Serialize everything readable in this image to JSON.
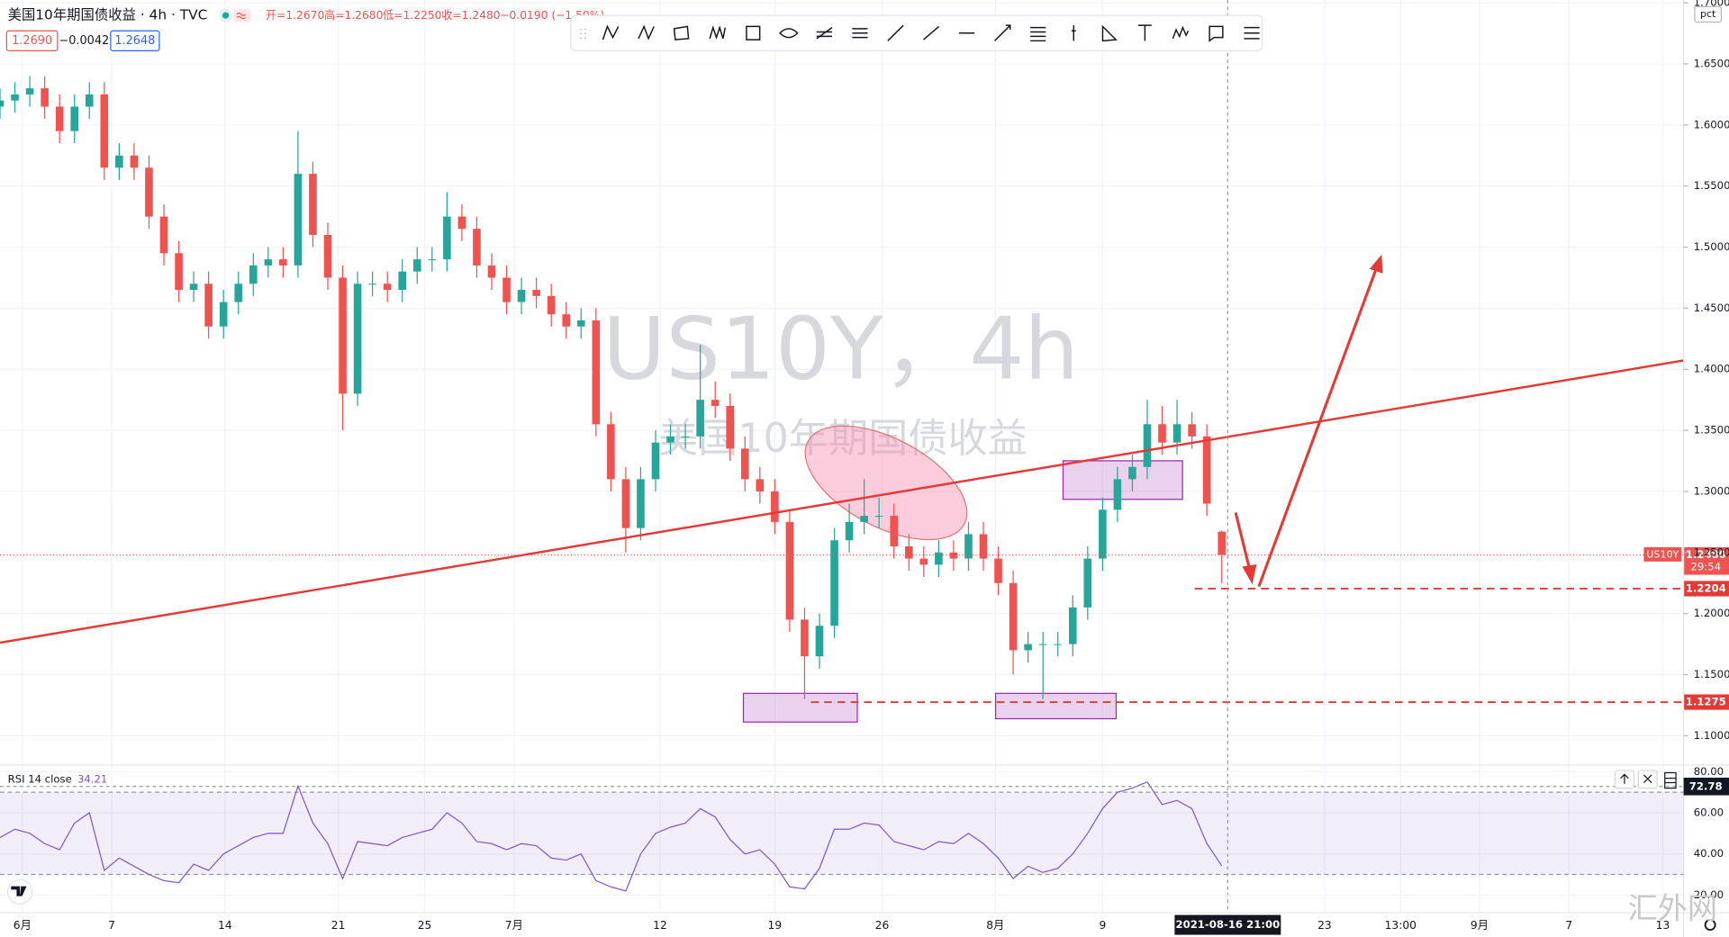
{
  "header": {
    "title": "美国10年期国债收益 · 4h · TVC",
    "ohlc": [
      "开=1.2670",
      "高=1.2680",
      "低=1.2250",
      "收=1.2480",
      "−0.0190 (−1.50%)"
    ],
    "bid": "1.2690",
    "spread": "−0.0042",
    "ask": "1.2648"
  },
  "watermark": {
    "symbol": "US10Y，4h",
    "name": "美国10年期国债收益"
  },
  "site_mark": "汇外网",
  "chart_data": [
    {
      "type": "candlestick",
      "series": [
        {
          "name": "US10Y",
          "up_color": "#26a69a",
          "down_color": "#ef5350",
          "open": [
            1.615,
            1.62,
            1.625,
            1.63,
            1.615,
            1.595,
            1.615,
            1.625,
            1.565,
            1.575,
            1.565,
            1.525,
            1.495,
            1.465,
            1.47,
            1.435,
            1.455,
            1.47,
            1.485,
            1.49,
            1.485,
            1.56,
            1.51,
            1.475,
            1.38,
            1.47,
            1.47,
            1.465,
            1.48,
            1.49,
            1.49,
            1.525,
            1.515,
            1.485,
            1.475,
            1.455,
            1.465,
            1.46,
            1.445,
            1.435,
            1.44,
            1.355,
            1.31,
            1.27,
            1.31,
            1.34,
            1.345,
            1.345,
            1.375,
            1.37,
            1.335,
            1.31,
            1.3,
            1.275,
            1.195,
            1.165,
            1.19,
            1.26,
            1.275,
            1.28,
            1.28,
            1.255,
            1.245,
            1.24,
            1.25,
            1.245,
            1.265,
            1.245,
            1.225,
            1.17,
            1.175,
            1.175,
            1.175,
            1.205,
            1.245,
            1.285,
            1.31,
            1.32,
            1.355,
            1.34,
            1.355,
            1.345,
            1.267
          ],
          "high": [
            1.63,
            1.635,
            1.64,
            1.64,
            1.625,
            1.625,
            1.635,
            1.635,
            1.585,
            1.585,
            1.575,
            1.535,
            1.505,
            1.48,
            1.48,
            1.465,
            1.48,
            1.495,
            1.5,
            1.5,
            1.595,
            1.57,
            1.52,
            1.485,
            1.48,
            1.48,
            1.48,
            1.49,
            1.5,
            1.5,
            1.545,
            1.535,
            1.525,
            1.495,
            1.485,
            1.475,
            1.475,
            1.47,
            1.455,
            1.45,
            1.45,
            1.365,
            1.32,
            1.32,
            1.35,
            1.355,
            1.355,
            1.42,
            1.39,
            1.38,
            1.345,
            1.32,
            1.31,
            1.285,
            1.205,
            1.2,
            1.27,
            1.29,
            1.31,
            1.295,
            1.29,
            1.265,
            1.255,
            1.26,
            1.26,
            1.275,
            1.275,
            1.255,
            1.235,
            1.185,
            1.185,
            1.185,
            1.215,
            1.255,
            1.295,
            1.32,
            1.33,
            1.375,
            1.37,
            1.375,
            1.365,
            1.355,
            1.268
          ],
          "low": [
            1.605,
            1.61,
            1.615,
            1.605,
            1.585,
            1.585,
            1.605,
            1.555,
            1.555,
            1.555,
            1.515,
            1.485,
            1.455,
            1.455,
            1.425,
            1.425,
            1.445,
            1.46,
            1.475,
            1.475,
            1.475,
            1.5,
            1.465,
            1.35,
            1.37,
            1.46,
            1.455,
            1.455,
            1.47,
            1.48,
            1.48,
            1.505,
            1.475,
            1.465,
            1.445,
            1.445,
            1.45,
            1.435,
            1.425,
            1.425,
            1.345,
            1.3,
            1.25,
            1.26,
            1.3,
            1.33,
            1.335,
            1.335,
            1.36,
            1.325,
            1.3,
            1.29,
            1.265,
            1.185,
            1.13,
            1.155,
            1.18,
            1.25,
            1.265,
            1.27,
            1.245,
            1.235,
            1.23,
            1.23,
            1.235,
            1.235,
            1.235,
            1.215,
            1.15,
            1.16,
            1.13,
            1.165,
            1.165,
            1.195,
            1.235,
            1.275,
            1.3,
            1.31,
            1.33,
            1.33,
            1.335,
            1.28,
            1.225
          ],
          "close": [
            1.62,
            1.625,
            1.63,
            1.615,
            1.595,
            1.615,
            1.625,
            1.565,
            1.575,
            1.565,
            1.525,
            1.495,
            1.465,
            1.47,
            1.435,
            1.455,
            1.47,
            1.485,
            1.49,
            1.485,
            1.56,
            1.51,
            1.475,
            1.38,
            1.47,
            1.47,
            1.465,
            1.48,
            1.49,
            1.49,
            1.525,
            1.515,
            1.485,
            1.475,
            1.455,
            1.465,
            1.46,
            1.445,
            1.435,
            1.44,
            1.355,
            1.31,
            1.27,
            1.31,
            1.34,
            1.345,
            1.345,
            1.375,
            1.37,
            1.335,
            1.31,
            1.3,
            1.275,
            1.195,
            1.165,
            1.19,
            1.26,
            1.275,
            1.28,
            1.28,
            1.255,
            1.245,
            1.24,
            1.25,
            1.245,
            1.265,
            1.245,
            1.225,
            1.17,
            1.175,
            1.175,
            1.175,
            1.205,
            1.245,
            1.285,
            1.31,
            1.32,
            1.355,
            1.34,
            1.355,
            1.345,
            1.29,
            1.248
          ]
        }
      ],
      "xlim": [
        0,
        113
      ],
      "xticks": [
        {
          "value": 1.5,
          "label": "6月"
        },
        {
          "value": 7.5,
          "label": "7"
        },
        {
          "value": 15.1,
          "label": "14"
        },
        {
          "value": 22.7,
          "label": "21"
        },
        {
          "value": 28.5,
          "label": "25"
        },
        {
          "value": 34.5,
          "label": "7月"
        },
        {
          "value": 44.3,
          "label": "12"
        },
        {
          "value": 52,
          "label": "19"
        },
        {
          "value": 59.2,
          "label": "26"
        },
        {
          "value": 66.8,
          "label": "8月"
        },
        {
          "value": 74,
          "label": "9"
        },
        {
          "value": 88.9,
          "label": "23"
        },
        {
          "value": 94,
          "label": "13:00"
        },
        {
          "value": 99.3,
          "label": "9月"
        },
        {
          "value": 105.3,
          "label": "7"
        },
        {
          "value": 111.6,
          "label": "13"
        }
      ],
      "ylim": [
        1.0769,
        1.7023
      ],
      "ylabel": "pct",
      "yticks": [
        {
          "value": 1.1,
          "label": "1.1000"
        },
        {
          "value": 1.15,
          "label": "1.1500"
        },
        {
          "value": 1.2,
          "label": "1.2000"
        },
        {
          "value": 1.25,
          "label": "1.2500"
        },
        {
          "value": 1.3,
          "label": "1.3000"
        },
        {
          "value": 1.35,
          "label": "1.3500"
        },
        {
          "value": 1.4,
          "label": "1.4000"
        },
        {
          "value": 1.45,
          "label": "1.4500"
        },
        {
          "value": 1.5,
          "label": "1.5000"
        },
        {
          "value": 1.55,
          "label": "1.5500"
        },
        {
          "value": 1.6,
          "label": "1.6000"
        },
        {
          "value": 1.65,
          "label": "1.6500"
        },
        {
          "value": 1.7,
          "label": "1.7000"
        }
      ],
      "grid": true,
      "last_price": {
        "value": 1.248,
        "label": "1.2480"
      },
      "countdown": "29:54",
      "levels": [
        1.2204,
        1.1275
      ],
      "crosshair": {
        "value": 82.4,
        "label": "2021-08-16 21:00"
      }
    },
    {
      "type": "line",
      "title": "RSI 14 close",
      "series": [
        {
          "color": "#7e57c2",
          "values": [
            48,
            52,
            50,
            45,
            42,
            55,
            60,
            32,
            38,
            34,
            30,
            27,
            26,
            35,
            32,
            40,
            44,
            48,
            50,
            50,
            73,
            55,
            45,
            28,
            46,
            45,
            44,
            48,
            50,
            52,
            60,
            55,
            46,
            45,
            42,
            45,
            44,
            38,
            37,
            40,
            27,
            24,
            22,
            40,
            50,
            53,
            55,
            62,
            58,
            47,
            40,
            42,
            35,
            24,
            23,
            33,
            52,
            52,
            55,
            54,
            46,
            44,
            42,
            46,
            45,
            50,
            45,
            38,
            28,
            34,
            31,
            33,
            40,
            50,
            62,
            70,
            72,
            75,
            64,
            66,
            62,
            45,
            34.21
          ]
        }
      ],
      "ylim": [
        11.4,
        81.6
      ],
      "yticks": [
        {
          "value": 20,
          "label": "20.00"
        },
        {
          "value": 40,
          "label": "40.00"
        },
        {
          "value": 60,
          "label": "60.00"
        },
        {
          "value": 80,
          "label": "80.00"
        }
      ],
      "bands": [
        30,
        70
      ],
      "crosshair": 72.78
    }
  ]
}
